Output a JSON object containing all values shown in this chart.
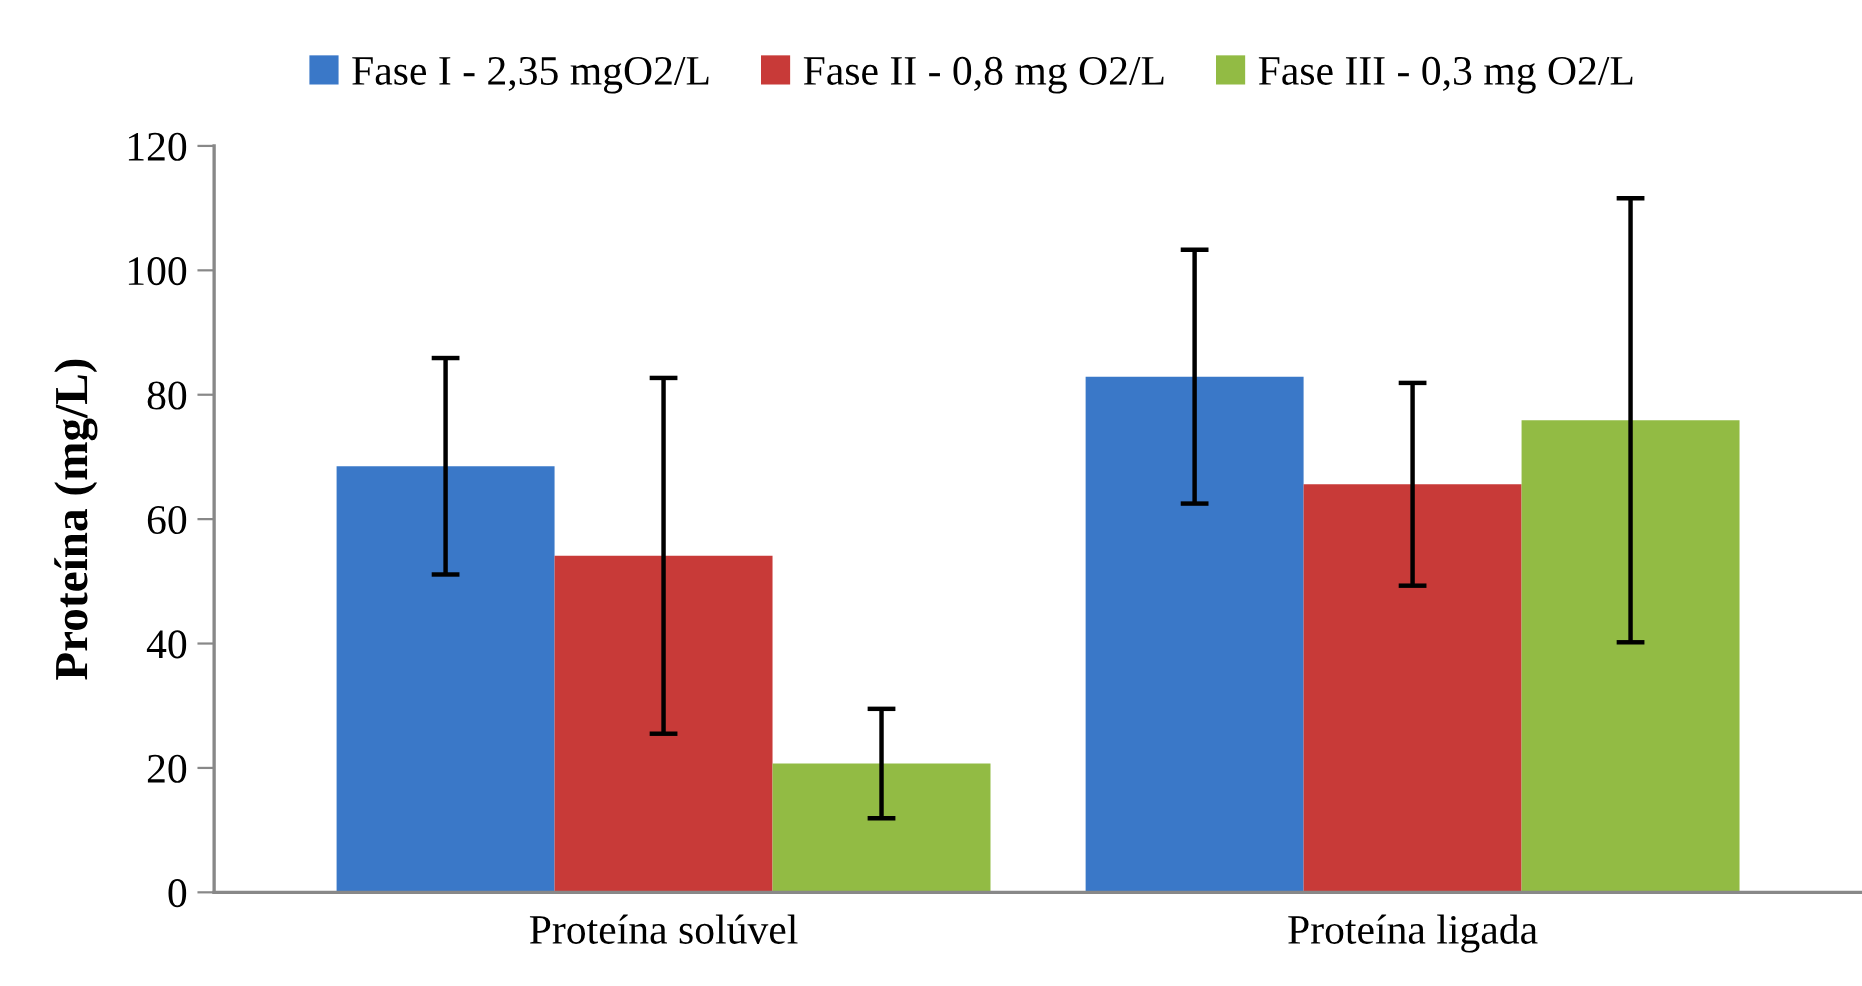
{
  "chart_data": {
    "type": "bar",
    "ylabel": "Proteína (mg/L)",
    "categories": [
      "Proteína solúvel",
      "Proteína ligada"
    ],
    "series": [
      {
        "name": "Fase I - 2,35 mgO2/L",
        "color": "#3a78c8",
        "values": [
          68.5,
          82.9
        ],
        "errors": [
          17.4,
          20.4
        ]
      },
      {
        "name": "Fase II - 0,8 mg O2/L",
        "color": "#c83a38",
        "values": [
          54.1,
          65.6
        ],
        "errors": [
          28.6,
          16.3
        ]
      },
      {
        "name": "Fase III - 0,3 mg O2/L",
        "color": "#92bb44",
        "values": [
          20.7,
          75.9
        ],
        "errors": [
          8.8,
          35.7
        ]
      }
    ],
    "ylim": [
      0,
      120
    ],
    "yticks": [
      0,
      20,
      40,
      60,
      80,
      100,
      120
    ],
    "grid": false,
    "legend": "top"
  }
}
